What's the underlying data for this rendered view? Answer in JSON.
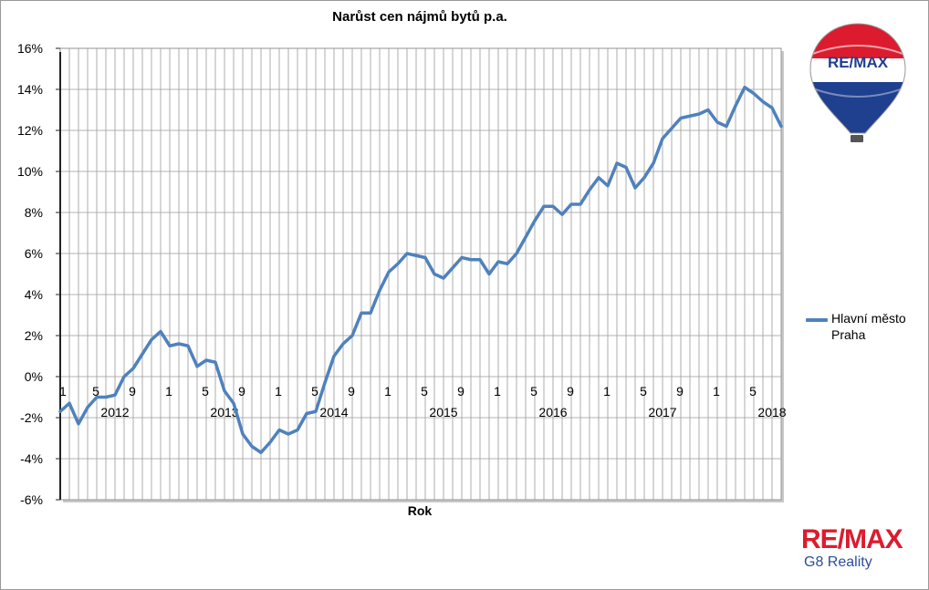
{
  "chart_data": {
    "type": "line",
    "title": "Narůst cen nájmů bytů p.a.",
    "xlabel": "Rok",
    "ylabel": "",
    "ylim": [
      -6,
      16
    ],
    "yticks": [
      "-6%",
      "-4%",
      "-2%",
      "0%",
      "2%",
      "4%",
      "6%",
      "8%",
      "10%",
      "12%",
      "14%",
      "16%"
    ],
    "grid": true,
    "legend": "right",
    "months_label_sequence": [
      "1",
      "5",
      "9"
    ],
    "years": [
      "2012",
      "2013",
      "2014",
      "2015",
      "2016",
      "2017",
      "2018"
    ],
    "series": [
      {
        "name": "Hlavní město Praha",
        "color": "#4f81bd",
        "values": [
          -1.7,
          -1.3,
          -2.3,
          -1.5,
          -1.0,
          -1.0,
          -0.9,
          0.0,
          0.4,
          1.1,
          1.8,
          2.2,
          1.5,
          1.6,
          1.5,
          0.5,
          0.8,
          0.7,
          -0.7,
          -1.3,
          -2.8,
          -3.4,
          -3.7,
          -3.2,
          -2.6,
          -2.8,
          -2.6,
          -1.8,
          -1.7,
          -0.3,
          1.0,
          1.6,
          2.0,
          3.1,
          3.1,
          4.2,
          5.1,
          5.5,
          6.0,
          5.9,
          5.8,
          5.0,
          4.8,
          5.3,
          5.8,
          5.7,
          5.7,
          5.0,
          5.6,
          5.5,
          6.0,
          6.8,
          7.6,
          8.3,
          8.3,
          7.9,
          8.4,
          8.4,
          9.1,
          9.7,
          9.3,
          10.4,
          10.2,
          9.2,
          9.7,
          10.4,
          11.6,
          12.1,
          12.6,
          12.7,
          12.8,
          13.0,
          12.4,
          12.2,
          13.2,
          14.1,
          13.8,
          13.4,
          13.1,
          12.2
        ]
      }
    ]
  },
  "branding": {
    "balloon_logo_text": "RE/MAX",
    "brand_name": "RE/MAX",
    "brand_sub": "G8 Reality"
  }
}
